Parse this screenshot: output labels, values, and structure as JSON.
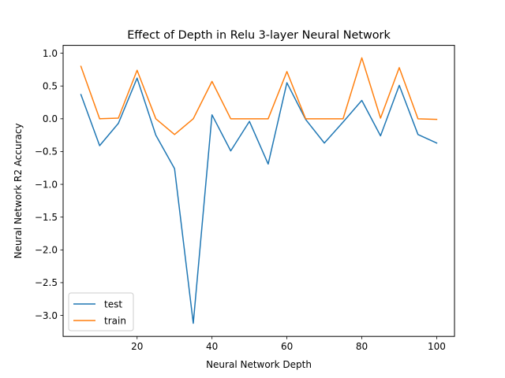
{
  "chart_data": {
    "type": "line",
    "title": "Effect of Depth in Relu 3-layer Neural Network",
    "xlabel": "Neural Network Depth",
    "ylabel": "Neural Network R2 Accuracy",
    "x": [
      5,
      10,
      15,
      20,
      25,
      30,
      35,
      40,
      45,
      50,
      55,
      60,
      65,
      70,
      75,
      80,
      85,
      90,
      95,
      100
    ],
    "xlim": [
      0.25,
      104.75
    ],
    "ylim": [
      -3.32,
      1.12
    ],
    "xticks": [
      20,
      40,
      60,
      80,
      100
    ],
    "xtick_labels": [
      "20",
      "40",
      "60",
      "80",
      "100"
    ],
    "yticks": [
      1.0,
      0.5,
      0.0,
      -0.5,
      -1.0,
      -1.5,
      -2.0,
      -2.5,
      -3.0
    ],
    "ytick_labels": [
      "1.0",
      "0.5",
      "0.0",
      "−0.5",
      "−1.0",
      "−1.5",
      "−2.0",
      "−2.5",
      "−3.0"
    ],
    "grid": false,
    "legend_position": "lower-left",
    "series": [
      {
        "name": "test",
        "color": "#1f77b4",
        "values": [
          0.37,
          -0.41,
          -0.07,
          0.62,
          -0.25,
          -0.76,
          -3.12,
          0.06,
          -0.49,
          -0.04,
          -0.69,
          0.55,
          -0.01,
          -0.37,
          -0.05,
          0.28,
          -0.26,
          0.51,
          -0.24,
          -0.37
        ]
      },
      {
        "name": "train",
        "color": "#ff7f0e",
        "values": [
          0.8,
          0.0,
          0.01,
          0.74,
          0.0,
          -0.24,
          0.0,
          0.57,
          0.0,
          0.0,
          0.0,
          0.72,
          0.0,
          0.0,
          0.0,
          0.93,
          0.01,
          0.78,
          0.0,
          -0.01
        ]
      }
    ]
  }
}
